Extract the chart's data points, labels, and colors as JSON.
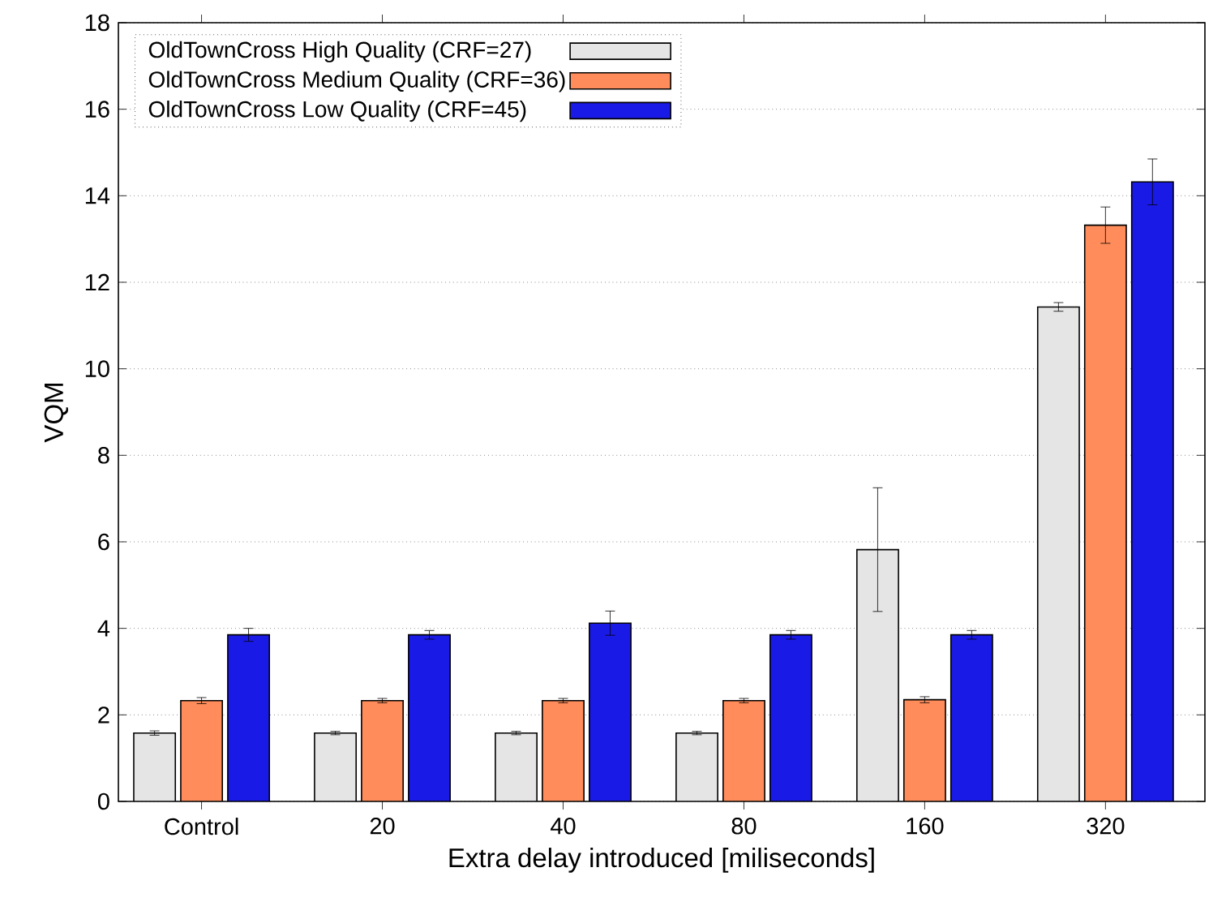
{
  "chart_data": {
    "type": "bar",
    "xlabel": "Extra delay introduced [miliseconds]",
    "ylabel": "VQM",
    "categories": [
      "Control",
      "20",
      "40",
      "80",
      "160",
      "320"
    ],
    "series": [
      {
        "name": "OldTownCross High Quality (CRF=27)",
        "color": "#e5e5e5",
        "values": [
          1.58,
          1.58,
          1.58,
          1.58,
          5.82,
          11.43
        ],
        "errors": [
          0.05,
          0.04,
          0.04,
          0.04,
          1.43,
          0.1
        ]
      },
      {
        "name": "OldTownCross Medium Quality (CRF=36)",
        "color": "#ff8c5a",
        "values": [
          2.33,
          2.33,
          2.33,
          2.33,
          2.35,
          13.32
        ],
        "errors": [
          0.07,
          0.05,
          0.05,
          0.05,
          0.07,
          0.42
        ]
      },
      {
        "name": "OldTownCross Low Quality (CRF=45)",
        "color": "#1a1ae6",
        "values": [
          3.85,
          3.85,
          4.12,
          3.85,
          3.85,
          14.32
        ],
        "errors": [
          0.15,
          0.1,
          0.28,
          0.1,
          0.1,
          0.53
        ]
      }
    ],
    "ylim": [
      0,
      18
    ],
    "yticks": [
      0,
      2,
      4,
      6,
      8,
      10,
      12,
      14,
      16,
      18
    ],
    "grid": "y",
    "legend": "top left"
  }
}
